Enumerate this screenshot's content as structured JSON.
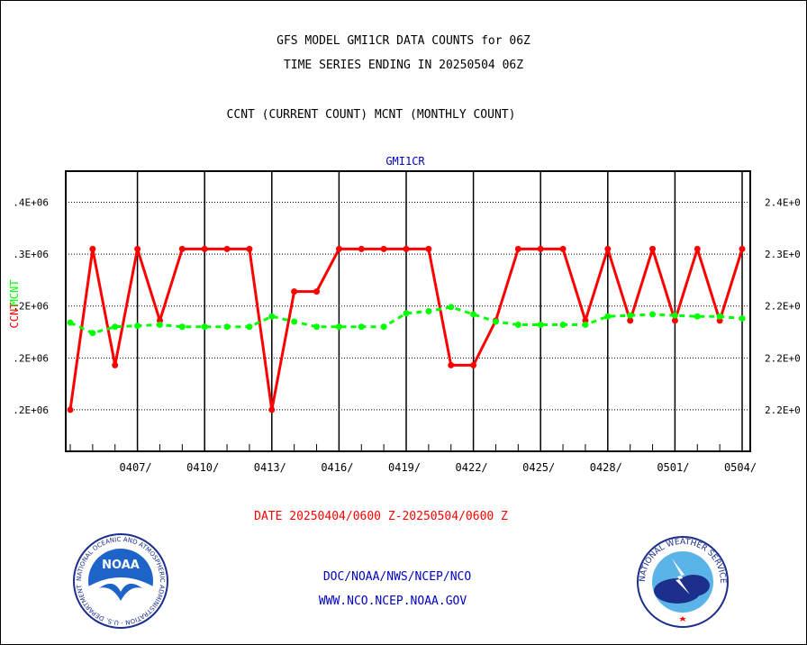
{
  "header": {
    "line1": "GFS MODEL GMI1CR DATA COUNTS for 06Z",
    "line2": "TIME SERIES ENDING IN 20250504 06Z",
    "line3": "CCNT (CURRENT COUNT) MCNT (MONTHLY COUNT)"
  },
  "footer": {
    "date_range": "DATE 20250404/0600 Z-20250504/0600 Z",
    "org_line": "DOC/NOAA/NWS/NCEP/NCO",
    "url_line": "WWW.NCO.NCEP.NOAA.GOV"
  },
  "logos": {
    "noaa_text": "NOAA",
    "noaa_ring": "NATIONAL OCEANIC AND ATMOSPHERIC ADMINISTRATION · U.S. DEPARTMENT OF COMMERCE",
    "nws_ring": "NATIONAL WEATHER SERVICE"
  },
  "chart_data": {
    "type": "line",
    "title": "GMI1CR",
    "xlabel": "",
    "ylabel_left": "CCNT",
    "ylabel_left2": "MCNT",
    "x_tick_labels": [
      "0407/",
      "0410/",
      "0413/",
      "0416/",
      "0419/",
      "0422/",
      "0425/",
      "0428/",
      "0501/",
      "0504/"
    ],
    "y_tick_labels_left": [
      ".2E+06",
      ".2E+06",
      ".2E+06",
      ".3E+06",
      ".4E+06"
    ],
    "y_tick_labels_right": [
      "2.2E+0",
      "2.2E+0",
      "2.2E+0",
      "2.3E+0",
      "2.4E+0"
    ],
    "grid": true,
    "legend": "none",
    "x_days": [
      0,
      1,
      2,
      3,
      4,
      5,
      6,
      7,
      8,
      9,
      10,
      11,
      12,
      13,
      14,
      15,
      16,
      17,
      18,
      19,
      20,
      21,
      22,
      23,
      24,
      25,
      26,
      27,
      28,
      29,
      30
    ],
    "series": [
      {
        "name": "CCNT",
        "color": "#ff0000",
        "values": [
          0.19,
          0.345,
          0.233,
          0.345,
          0.276,
          0.345,
          0.345,
          0.345,
          0.345,
          0.19,
          0.304,
          0.304,
          0.345,
          0.345,
          0.345,
          0.345,
          0.345,
          0.233,
          0.233,
          0.276,
          0.345,
          0.345,
          0.345,
          0.276,
          0.345,
          0.276,
          0.345,
          0.276,
          0.345,
          0.276,
          0.345
        ]
      },
      {
        "name": "MCNT",
        "color": "#00ff00",
        "values": [
          0.274,
          0.264,
          0.27,
          0.271,
          0.272,
          0.27,
          0.27,
          0.27,
          0.27,
          0.28,
          0.275,
          0.27,
          0.27,
          0.27,
          0.27,
          0.283,
          0.285,
          0.289,
          0.282,
          0.275,
          0.272,
          0.272,
          0.272,
          0.272,
          0.28,
          0.281,
          0.282,
          0.281,
          0.28,
          0.28,
          0.278
        ]
      }
    ],
    "ylim": [
      0.15,
      0.42
    ]
  }
}
